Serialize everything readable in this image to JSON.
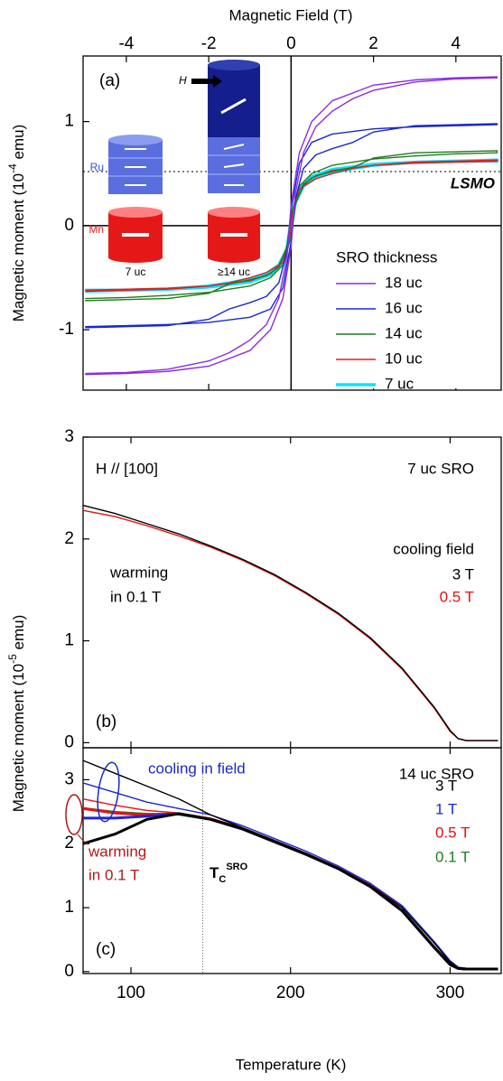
{
  "chart_data": [
    {
      "type": "line",
      "xlabel": "Magnetic Field (T)",
      "ylabel_parts": [
        "Magnetic moment (10",
        "-4",
        " emu)"
      ],
      "xlim": [
        -5.05,
        5.1
      ],
      "xticks": [
        -4,
        -2,
        0,
        2,
        4
      ],
      "ylim": [
        -1.58,
        1.63
      ],
      "yticks": [
        -1,
        0,
        1
      ],
      "zero_lines": true,
      "reference_line": 0.52,
      "reference_label": "LSMO",
      "panel_label": "(a)",
      "legend_title": "SRO thickness",
      "inset_labels": {
        "field": "H",
        "ru": "Ru",
        "mn": "Mn",
        "thin": "7 uc",
        "thick": "≥14 uc"
      },
      "x": [
        -5,
        -4,
        -3,
        -2,
        -1,
        -0.5,
        -0.2,
        0,
        0.1,
        0.3,
        0.6,
        1,
        1.5,
        2,
        3,
        4,
        5,
        5,
        4,
        3,
        2,
        1,
        0.5,
        0.2,
        0,
        -0.1,
        -0.3,
        -0.6,
        -1,
        -1.5,
        -2,
        -3,
        -4,
        -5
      ],
      "series": [
        {
          "name": "18 uc",
          "color": "#8b2be8",
          "values": [
            -1.43,
            -1.42,
            -1.4,
            -1.35,
            -1.2,
            -1.0,
            -0.7,
            -0.2,
            0.3,
            0.7,
            0.95,
            1.1,
            1.22,
            1.3,
            1.38,
            1.41,
            1.42,
            1.43,
            1.42,
            1.4,
            1.35,
            1.2,
            1.0,
            0.7,
            0.2,
            -0.3,
            -0.7,
            -0.95,
            -1.1,
            -1.22,
            -1.3,
            -1.38,
            -1.41,
            -1.42
          ]
        },
        {
          "name": "16 uc",
          "color": "#1a28d0",
          "values": [
            -0.97,
            -0.96,
            -0.95,
            -0.93,
            -0.88,
            -0.8,
            -0.6,
            -0.15,
            0.25,
            0.55,
            0.68,
            0.74,
            0.8,
            0.9,
            0.96,
            0.97,
            0.98,
            0.97,
            0.96,
            0.95,
            0.93,
            0.88,
            0.8,
            0.6,
            0.15,
            -0.25,
            -0.55,
            -0.68,
            -0.74,
            -0.8,
            -0.9,
            -0.96,
            -0.97,
            -0.98
          ]
        },
        {
          "name": "14 uc",
          "color": "#1e7d1e",
          "values": [
            -0.7,
            -0.69,
            -0.67,
            -0.64,
            -0.58,
            -0.5,
            -0.38,
            -0.1,
            0.2,
            0.4,
            0.48,
            0.52,
            0.56,
            0.65,
            0.7,
            0.71,
            0.72,
            0.7,
            0.69,
            0.67,
            0.64,
            0.58,
            0.5,
            0.38,
            0.1,
            -0.2,
            -0.4,
            -0.48,
            -0.52,
            -0.56,
            -0.65,
            -0.7,
            -0.71,
            -0.72
          ]
        },
        {
          "name": "10 uc",
          "color": "#e02020",
          "values": [
            -0.62,
            -0.61,
            -0.6,
            -0.58,
            -0.53,
            -0.46,
            -0.35,
            -0.05,
            0.22,
            0.38,
            0.45,
            0.5,
            0.55,
            0.58,
            0.61,
            0.62,
            0.63,
            0.62,
            0.61,
            0.6,
            0.58,
            0.53,
            0.46,
            0.35,
            0.05,
            -0.22,
            -0.38,
            -0.45,
            -0.5,
            -0.55,
            -0.58,
            -0.61,
            -0.62,
            -0.63
          ]
        },
        {
          "name": "7 uc",
          "color": "#00e5ff",
          "width": 3.5,
          "values": [
            -0.62,
            -0.62,
            -0.61,
            -0.59,
            -0.54,
            -0.47,
            -0.36,
            -0.06,
            0.22,
            0.38,
            0.46,
            0.51,
            0.55,
            0.58,
            0.61,
            0.62,
            0.63,
            0.62,
            0.62,
            0.61,
            0.59,
            0.54,
            0.47,
            0.36,
            0.06,
            -0.22,
            -0.38,
            -0.46,
            -0.51,
            -0.55,
            -0.58,
            -0.61,
            -0.62,
            -0.63
          ]
        }
      ]
    },
    {
      "type": "line",
      "ylabel_parts": [
        "Magnetic moment (10",
        "-5",
        " emu)"
      ],
      "xlim": [
        70,
        332
      ],
      "xticks": [
        100,
        200,
        300
      ],
      "ylim": [
        -0.05,
        3.0
      ],
      "yticks": [
        0,
        1,
        2,
        3
      ],
      "panel_label": "(b)",
      "annotations": [
        "H // [100]",
        "7 uc SRO",
        "cooling field",
        "warming",
        "in 0.1 T"
      ],
      "x": [
        70,
        90,
        110,
        130,
        150,
        170,
        190,
        210,
        230,
        250,
        270,
        290,
        300,
        305,
        310,
        320,
        330
      ],
      "series": [
        {
          "name": "3 T",
          "color": "#000000",
          "values": [
            2.33,
            2.25,
            2.15,
            2.05,
            1.93,
            1.8,
            1.65,
            1.47,
            1.27,
            1.03,
            0.73,
            0.35,
            0.12,
            0.04,
            0.02,
            0.02,
            0.02
          ]
        },
        {
          "name": "0.5 T",
          "color": "#e81010",
          "values": [
            2.28,
            2.22,
            2.13,
            2.03,
            1.92,
            1.79,
            1.64,
            1.46,
            1.26,
            1.02,
            0.72,
            0.34,
            0.11,
            0.04,
            0.02,
            0.02,
            0.02
          ]
        }
      ]
    },
    {
      "type": "line",
      "xlabel": "Temperature (K)",
      "xlim": [
        70,
        332
      ],
      "xticks": [
        100,
        200,
        300
      ],
      "ylim": [
        -0.03,
        3.5
      ],
      "yticks": [
        0,
        1,
        2,
        3
      ],
      "panel_label": "(c)",
      "annotations": [
        "cooling in field",
        "14 uc SRO",
        "warming",
        "in 0.1 T"
      ],
      "tc_label": [
        "T",
        "C",
        "SRO"
      ],
      "tc_line": 145,
      "x": [
        70,
        90,
        110,
        130,
        150,
        170,
        190,
        210,
        230,
        250,
        270,
        290,
        300,
        305,
        310,
        320,
        330
      ],
      "series": [
        {
          "color": "#000000",
          "width": 3,
          "values": [
            2.0,
            2.15,
            2.38,
            2.47,
            2.38,
            2.23,
            2.03,
            1.83,
            1.61,
            1.33,
            0.95,
            0.38,
            0.11,
            0.05,
            0.04,
            0.04,
            0.04
          ]
        },
        {
          "color": "#1a28d0",
          "width": 3,
          "values": [
            2.4,
            2.4,
            2.43,
            2.47,
            2.38,
            2.23,
            2.03,
            1.83,
            1.61,
            1.33,
            0.95,
            0.38,
            0.11,
            0.05,
            0.04,
            0.04,
            0.04
          ]
        },
        {
          "color": "#e81010",
          "width": 3,
          "values": [
            2.55,
            2.48,
            2.45,
            2.47,
            2.38,
            2.23,
            2.03,
            1.83,
            1.61,
            1.33,
            0.95,
            0.38,
            0.11,
            0.05,
            0.04,
            0.04,
            0.04
          ]
        },
        {
          "color": "#1e7d1e",
          "width": 3,
          "values": [
            2.55,
            2.49,
            2.46,
            2.46,
            2.38,
            2.23,
            2.03,
            1.83,
            1.61,
            1.33,
            0.95,
            0.38,
            0.11,
            0.05,
            0.04,
            0.04,
            0.04
          ]
        },
        {
          "name": "3 T",
          "color": "#000000",
          "values": [
            3.3,
            3.1,
            2.9,
            2.7,
            2.45,
            2.25,
            2.05,
            1.85,
            1.62,
            1.35,
            1.0,
            0.45,
            0.15,
            0.06,
            0.04,
            0.04,
            0.04
          ]
        },
        {
          "name": "1 T",
          "color": "#1a28d0",
          "values": [
            2.95,
            2.8,
            2.65,
            2.55,
            2.45,
            2.28,
            2.08,
            1.88,
            1.65,
            1.38,
            1.03,
            0.47,
            0.17,
            0.07,
            0.05,
            0.05,
            0.05
          ]
        },
        {
          "name": "0.5 T",
          "color": "#e81010",
          "values": [
            2.7,
            2.6,
            2.52,
            2.48,
            2.4,
            2.25,
            2.05,
            1.85,
            1.63,
            1.36,
            1.01,
            0.45,
            0.16,
            0.07,
            0.05,
            0.05,
            0.05
          ]
        },
        {
          "name": "0.1 T",
          "color": "#1e7d1e",
          "values": [
            2.55,
            2.5,
            2.47,
            2.46,
            2.38,
            2.23,
            2.03,
            1.84,
            1.62,
            1.34,
            0.97,
            0.4,
            0.12,
            0.05,
            0.04,
            0.04,
            0.04
          ]
        }
      ]
    }
  ]
}
